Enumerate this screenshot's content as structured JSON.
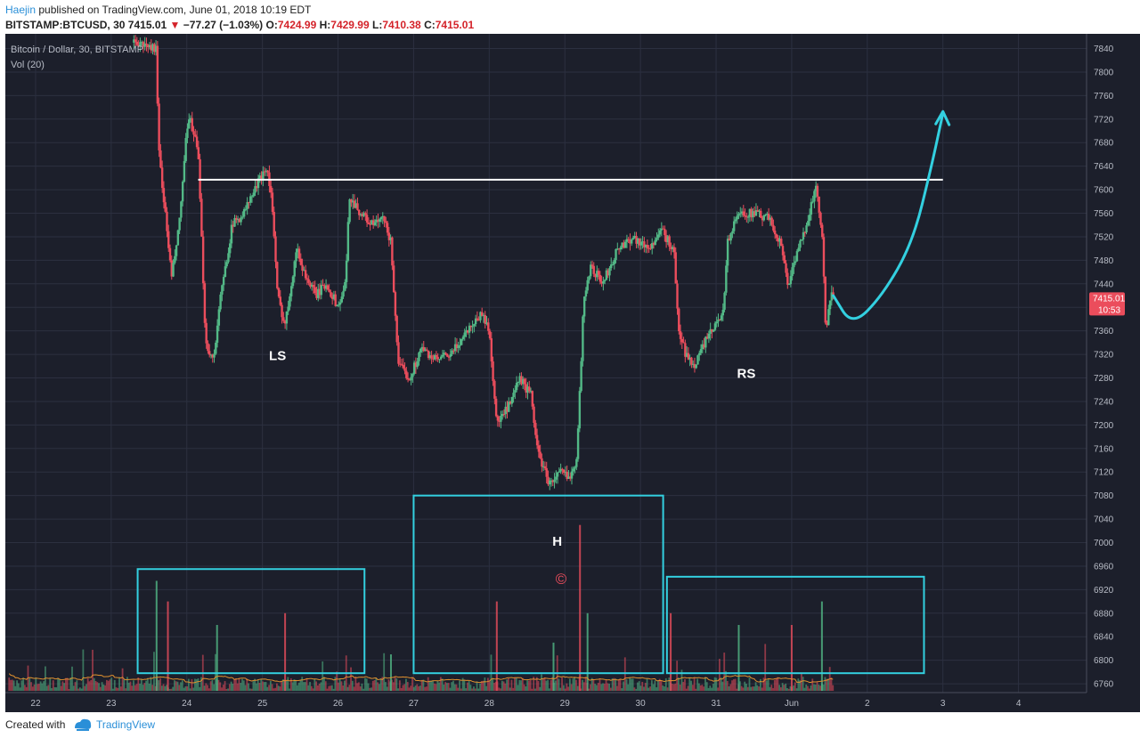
{
  "header": {
    "author": "Haejin",
    "published": " published on TradingView.com, June 01, 2018 10:19 EDT",
    "symbol": "BITSTAMP:BTCUSD, 30",
    "last": "7415.01",
    "arrow": "▼",
    "change": "−77.27 (−1.03%)",
    "o_label": "O:",
    "o_value": "7424.99",
    "h_label": "H:",
    "h_value": "7429.99",
    "l_label": "L:",
    "l_value": "7410.38",
    "c_label": "C:",
    "c_value": "7415.01"
  },
  "legend": {
    "title": "Bitcoin / Dollar, 30, BITSTAMP",
    "volume": "Vol (20)"
  },
  "price_badge": {
    "price": "7415.01",
    "countdown": "10:53"
  },
  "annotations": {
    "left_shoulder": "LS",
    "head": "H",
    "right_shoulder": "RS",
    "copyright": "©"
  },
  "footer": {
    "created_with": "Created with",
    "brand": "TradingView"
  },
  "colors": {
    "background": "#1c1f2b",
    "grid": "#2c3040",
    "up": "#53b987",
    "down": "#eb4d5c",
    "annotation": "#33d0e0",
    "neckline": "#ffffff",
    "volume_ma": "#e0902f",
    "price_badge": "#eb4d5c"
  },
  "chart_data": {
    "type": "candlestick",
    "title": "Bitcoin / Dollar, 30, BITSTAMP",
    "y_ticks": [
      6760,
      6800,
      6840,
      6880,
      6920,
      6960,
      7000,
      7040,
      7080,
      7120,
      7160,
      7200,
      7240,
      7280,
      7320,
      7360,
      7400,
      7440,
      7480,
      7520,
      7560,
      7600,
      7640,
      7680,
      7720,
      7760,
      7800,
      7840
    ],
    "ylim": [
      6745,
      7865
    ],
    "x_ticks": [
      "22",
      "23",
      "24",
      "25",
      "26",
      "27",
      "28",
      "29",
      "30",
      "31",
      "Jun",
      "2",
      "3",
      "4"
    ],
    "x_tick_days": [
      22,
      23,
      24,
      25,
      26,
      27,
      28,
      29,
      30,
      31,
      32,
      33,
      34,
      35
    ],
    "xlim_days": [
      21.6,
      35.9
    ],
    "price_path": [
      [
        23.3,
        7850
      ],
      [
        23.6,
        7840
      ],
      [
        23.62,
        7680
      ],
      [
        23.8,
        7450
      ],
      [
        23.9,
        7540
      ],
      [
        24.0,
        7700
      ],
      [
        24.05,
        7720
      ],
      [
        24.15,
        7660
      ],
      [
        24.25,
        7340
      ],
      [
        24.35,
        7310
      ],
      [
        24.45,
        7420
      ],
      [
        24.6,
        7540
      ],
      [
        24.75,
        7560
      ],
      [
        24.9,
        7600
      ],
      [
        25.05,
        7640
      ],
      [
        25.12,
        7590
      ],
      [
        25.2,
        7420
      ],
      [
        25.3,
        7370
      ],
      [
        25.45,
        7500
      ],
      [
        25.55,
        7460
      ],
      [
        25.7,
        7420
      ],
      [
        25.85,
        7440
      ],
      [
        26.0,
        7400
      ],
      [
        26.1,
        7440
      ],
      [
        26.15,
        7590
      ],
      [
        26.3,
        7560
      ],
      [
        26.45,
        7540
      ],
      [
        26.6,
        7550
      ],
      [
        26.7,
        7510
      ],
      [
        26.8,
        7300
      ],
      [
        26.95,
        7280
      ],
      [
        27.1,
        7330
      ],
      [
        27.3,
        7310
      ],
      [
        27.5,
        7320
      ],
      [
        27.7,
        7360
      ],
      [
        27.9,
        7390
      ],
      [
        28.0,
        7360
      ],
      [
        28.1,
        7200
      ],
      [
        28.3,
        7240
      ],
      [
        28.4,
        7280
      ],
      [
        28.55,
        7250
      ],
      [
        28.65,
        7150
      ],
      [
        28.8,
        7100
      ],
      [
        28.95,
        7120
      ],
      [
        29.05,
        7110
      ],
      [
        29.15,
        7140
      ],
      [
        29.2,
        7260
      ],
      [
        29.25,
        7420
      ],
      [
        29.35,
        7470
      ],
      [
        29.5,
        7440
      ],
      [
        29.7,
        7500
      ],
      [
        29.9,
        7520
      ],
      [
        30.1,
        7500
      ],
      [
        30.3,
        7530
      ],
      [
        30.45,
        7490
      ],
      [
        30.5,
        7360
      ],
      [
        30.6,
        7320
      ],
      [
        30.7,
        7300
      ],
      [
        30.85,
        7340
      ],
      [
        31.0,
        7370
      ],
      [
        31.1,
        7400
      ],
      [
        31.15,
        7510
      ],
      [
        31.3,
        7560
      ],
      [
        31.5,
        7560
      ],
      [
        31.7,
        7550
      ],
      [
        31.85,
        7510
      ],
      [
        31.95,
        7440
      ],
      [
        32.1,
        7500
      ],
      [
        32.25,
        7570
      ],
      [
        32.32,
        7600
      ],
      [
        32.4,
        7530
      ],
      [
        32.45,
        7360
      ],
      [
        32.52,
        7420
      ],
      [
        32.55,
        7415
      ]
    ],
    "neckline": [
      [
        24.15,
        7617
      ],
      [
        34.0,
        7617
      ]
    ],
    "projection": [
      [
        32.55,
        7420
      ],
      [
        32.8,
        7368
      ],
      [
        33.2,
        7420
      ],
      [
        33.6,
        7510
      ],
      [
        33.85,
        7640
      ],
      [
        34.0,
        7730
      ]
    ],
    "volume_boxes": [
      {
        "x0": 23.35,
        "x1": 26.35,
        "y0": 6778,
        "y1": 6955
      },
      {
        "x0": 27.0,
        "x1": 30.3,
        "y0": 6778,
        "y1": 7080
      },
      {
        "x0": 30.35,
        "x1": 33.75,
        "y0": 6778,
        "y1": 6942
      }
    ],
    "volume_spikes": [
      [
        23.6,
        6935
      ],
      [
        23.75,
        6900
      ],
      [
        24.4,
        6860
      ],
      [
        25.3,
        6880
      ],
      [
        26.7,
        6810
      ],
      [
        28.1,
        6900
      ],
      [
        28.85,
        6830
      ],
      [
        29.2,
        7030
      ],
      [
        29.3,
        6880
      ],
      [
        30.4,
        6880
      ],
      [
        31.3,
        6860
      ],
      [
        32.0,
        6860
      ],
      [
        32.4,
        6900
      ]
    ],
    "label_positions": {
      "LS": [
        25.2,
        7310
      ],
      "H": [
        28.9,
        6995
      ],
      "RS": [
        31.4,
        7280
      ],
      "copyright": [
        28.95,
        6930
      ]
    },
    "last_price": 7415.01
  }
}
